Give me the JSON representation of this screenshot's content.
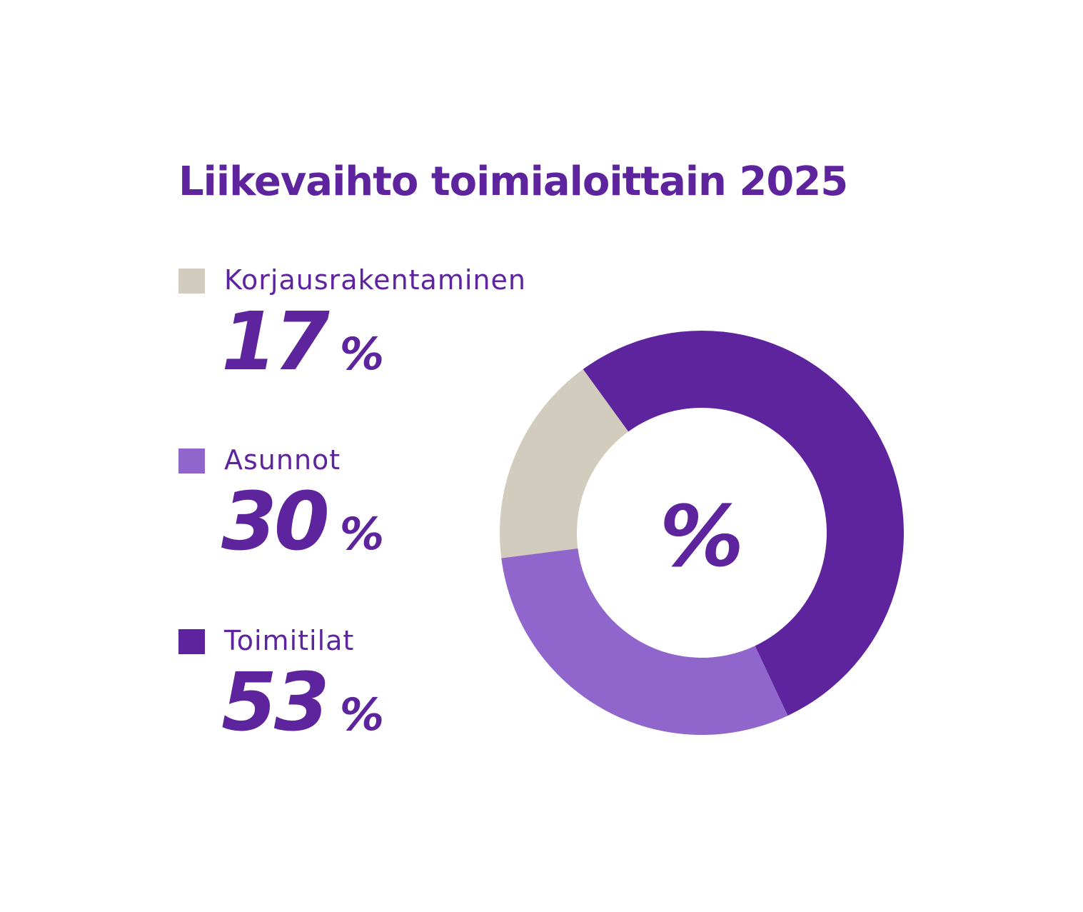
{
  "chart_data": {
    "type": "pie",
    "variant": "donut",
    "title": "Liikevaihto toimialoittain 2025",
    "center_label": "%",
    "legend_placement": "left",
    "unit": "%",
    "slices": [
      {
        "label": "Korjausrakentaminen",
        "value": 17,
        "value_text": "17",
        "color": "#d1ccbd"
      },
      {
        "label": "Asunnot",
        "value": 30,
        "value_text": "30",
        "color": "#9066cc"
      },
      {
        "label": "Toimitilat",
        "value": 53,
        "value_text": "53",
        "color": "#5e249e"
      }
    ]
  }
}
